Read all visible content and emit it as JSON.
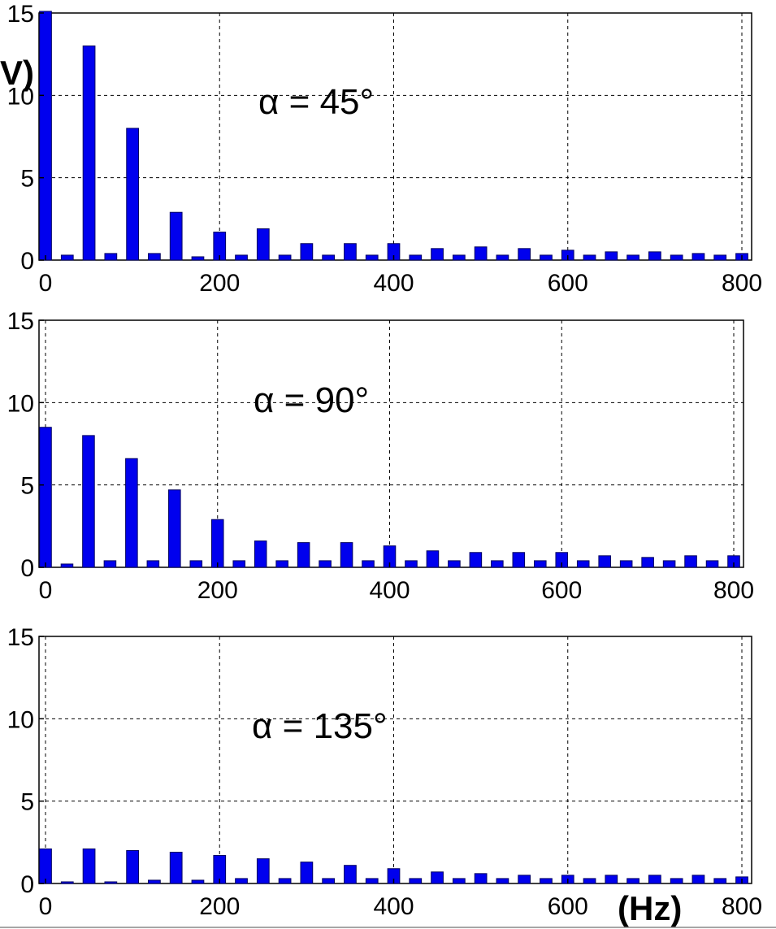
{
  "figure": {
    "y_unit_fragment": "V)",
    "x_unit": "(Hz)"
  },
  "chart_data": [
    {
      "type": "bar",
      "annotation": "α = 45°",
      "xlim": [
        0,
        800
      ],
      "ylim": [
        0,
        15
      ],
      "xticks": [
        "0",
        "200",
        "400",
        "600",
        "800"
      ],
      "yticks": [
        "0",
        "5",
        "10",
        "15"
      ],
      "grid": true,
      "bar_color": "#0000ee",
      "x": [
        0,
        25,
        50,
        75,
        100,
        125,
        150,
        175,
        200,
        225,
        250,
        275,
        300,
        325,
        350,
        375,
        400,
        425,
        450,
        475,
        500,
        525,
        550,
        575,
        600,
        625,
        650,
        675,
        700,
        725,
        750,
        775,
        800
      ],
      "values": [
        15.1,
        0.3,
        13.0,
        0.4,
        8.0,
        0.4,
        2.9,
        0.2,
        1.7,
        0.3,
        1.9,
        0.3,
        1.0,
        0.3,
        1.0,
        0.3,
        1.0,
        0.3,
        0.7,
        0.3,
        0.8,
        0.3,
        0.7,
        0.3,
        0.6,
        0.3,
        0.5,
        0.3,
        0.5,
        0.3,
        0.4,
        0.3,
        0.4
      ]
    },
    {
      "type": "bar",
      "annotation": "α = 90°",
      "xlim": [
        0,
        800
      ],
      "ylim": [
        0,
        15
      ],
      "xticks": [
        "0",
        "200",
        "400",
        "600",
        "800"
      ],
      "yticks": [
        "0",
        "5",
        "10",
        "15"
      ],
      "grid": true,
      "bar_color": "#0000ee",
      "x": [
        0,
        25,
        50,
        75,
        100,
        125,
        150,
        175,
        200,
        225,
        250,
        275,
        300,
        325,
        350,
        375,
        400,
        425,
        450,
        475,
        500,
        525,
        550,
        575,
        600,
        625,
        650,
        675,
        700,
        725,
        750,
        775,
        800
      ],
      "values": [
        8.5,
        0.2,
        8.0,
        0.4,
        6.6,
        0.4,
        4.7,
        0.4,
        2.9,
        0.4,
        1.6,
        0.4,
        1.5,
        0.4,
        1.5,
        0.4,
        1.3,
        0.4,
        1.0,
        0.4,
        0.9,
        0.4,
        0.9,
        0.4,
        0.9,
        0.4,
        0.7,
        0.4,
        0.6,
        0.4,
        0.7,
        0.4,
        0.7
      ]
    },
    {
      "type": "bar",
      "annotation": "α = 135°",
      "xlim": [
        0,
        800
      ],
      "ylim": [
        0,
        15
      ],
      "xticks": [
        "0",
        "200",
        "400",
        "600",
        "800"
      ],
      "yticks": [
        "0",
        "5",
        "10",
        "15"
      ],
      "grid": true,
      "bar_color": "#0000ee",
      "x": [
        0,
        25,
        50,
        75,
        100,
        125,
        150,
        175,
        200,
        225,
        250,
        275,
        300,
        325,
        350,
        375,
        400,
        425,
        450,
        475,
        500,
        525,
        550,
        575,
        600,
        625,
        650,
        675,
        700,
        725,
        750,
        775,
        800
      ],
      "values": [
        2.1,
        0.1,
        2.1,
        0.1,
        2.0,
        0.2,
        1.9,
        0.2,
        1.7,
        0.3,
        1.5,
        0.3,
        1.3,
        0.3,
        1.1,
        0.3,
        0.9,
        0.3,
        0.7,
        0.3,
        0.6,
        0.3,
        0.5,
        0.3,
        0.5,
        0.3,
        0.5,
        0.3,
        0.5,
        0.3,
        0.5,
        0.3,
        0.4
      ]
    }
  ]
}
